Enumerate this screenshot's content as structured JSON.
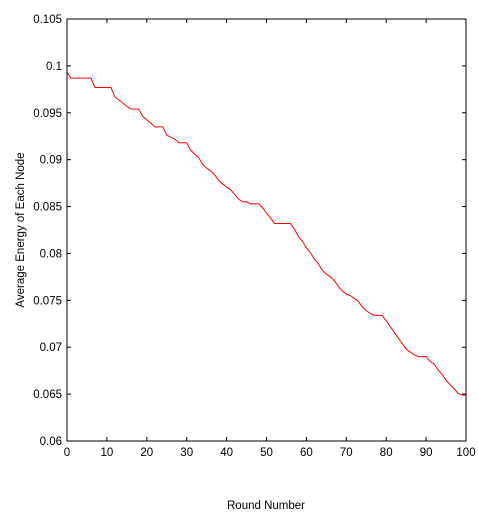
{
  "chart_data": {
    "type": "line",
    "title": "",
    "xlabel": "Round Number",
    "ylabel": "Average Energy of Each Node",
    "xlim": [
      0,
      100
    ],
    "ylim": [
      0.06,
      0.105
    ],
    "xticks": [
      0,
      10,
      20,
      30,
      40,
      50,
      60,
      70,
      80,
      90,
      100
    ],
    "xtick_labels": [
      "0",
      "10",
      "20",
      "30",
      "40",
      "50",
      "60",
      "70",
      "80",
      "90",
      "100"
    ],
    "yticks": [
      0.06,
      0.065,
      0.07,
      0.075,
      0.08,
      0.085,
      0.09,
      0.095,
      0.1,
      0.105
    ],
    "ytick_labels": [
      "0.06",
      "0.065",
      "0.07",
      "0.075",
      "0.08",
      "0.085",
      "0.09",
      "0.095",
      "0.1",
      "0.105"
    ],
    "grid": false,
    "series": [
      {
        "color": "#ff0000",
        "x": [
          0,
          1,
          6,
          7,
          11,
          12,
          15,
          16,
          18,
          19,
          21,
          22,
          24,
          25,
          27,
          28,
          30,
          31,
          32,
          33,
          34,
          35,
          36,
          37,
          38,
          39,
          40,
          41,
          42,
          43,
          44,
          45,
          46,
          47,
          48,
          49,
          50,
          51,
          52,
          53,
          56,
          57,
          58,
          59,
          60,
          61,
          62,
          63,
          64,
          65,
          66,
          67,
          68,
          69,
          70,
          71,
          72,
          73,
          74,
          75,
          76,
          77,
          79,
          80,
          81,
          82,
          83,
          84,
          85,
          86,
          87,
          88,
          90,
          91,
          92,
          93,
          94,
          95,
          96,
          97,
          98,
          99,
          100
        ],
        "y": [
          0.0993,
          0.0987,
          0.0987,
          0.0977,
          0.0977,
          0.0967,
          0.0957,
          0.0954,
          0.0954,
          0.0946,
          0.0939,
          0.0935,
          0.0935,
          0.0926,
          0.0922,
          0.0918,
          0.0918,
          0.091,
          0.0906,
          0.0902,
          0.0895,
          0.0891,
          0.0888,
          0.0884,
          0.0878,
          0.0874,
          0.0871,
          0.0868,
          0.0863,
          0.0858,
          0.0855,
          0.0855,
          0.0853,
          0.0853,
          0.0853,
          0.0849,
          0.0843,
          0.0838,
          0.0832,
          0.0832,
          0.0832,
          0.0826,
          0.0818,
          0.0813,
          0.0806,
          0.0801,
          0.0794,
          0.0789,
          0.0782,
          0.0778,
          0.0775,
          0.0771,
          0.0765,
          0.076,
          0.0757,
          0.0755,
          0.0752,
          0.0749,
          0.0743,
          0.0739,
          0.0736,
          0.0734,
          0.0734,
          0.0728,
          0.0722,
          0.0716,
          0.071,
          0.0704,
          0.0698,
          0.0695,
          0.0692,
          0.069,
          0.069,
          0.0685,
          0.0682,
          0.0676,
          0.0671,
          0.0665,
          0.066,
          0.0656,
          0.0651,
          0.0649,
          0.0649
        ]
      }
    ]
  }
}
